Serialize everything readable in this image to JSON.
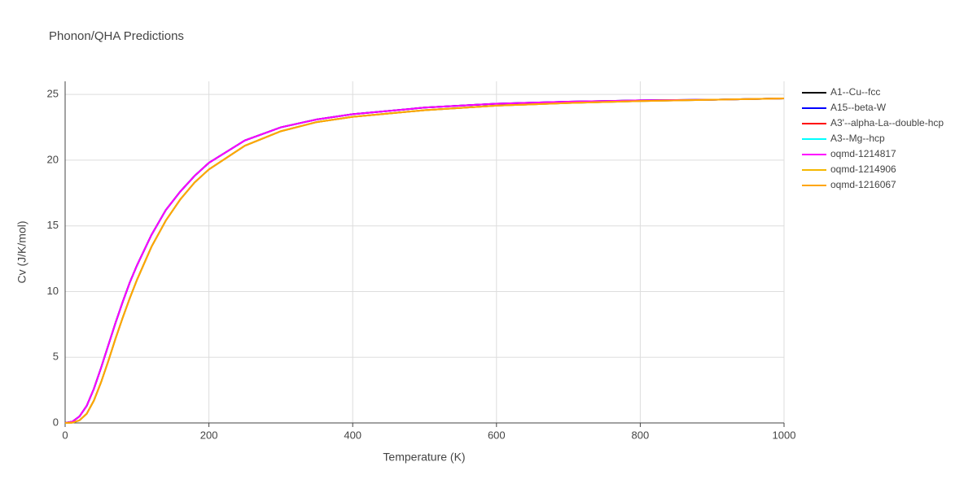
{
  "chart_data": {
    "type": "line",
    "title": "Phonon/QHA Predictions",
    "x_label": "Temperature (K)",
    "y_label": "Cv (J/K/mol)",
    "x": [
      0,
      10,
      20,
      30,
      40,
      50,
      60,
      70,
      80,
      90,
      100,
      120,
      140,
      160,
      180,
      200,
      250,
      300,
      350,
      400,
      500,
      600,
      700,
      800,
      900,
      1000
    ],
    "series": [
      {
        "name": "A1--Cu--fcc",
        "color": "#000000",
        "values": [
          0,
          0.1,
          0.5,
          1.3,
          2.6,
          4.2,
          5.9,
          7.6,
          9.2,
          10.7,
          12.0,
          14.3,
          16.2,
          17.6,
          18.8,
          19.8,
          21.5,
          22.5,
          23.1,
          23.5,
          24.0,
          24.3,
          24.45,
          24.55,
          24.6,
          24.7
        ]
      },
      {
        "name": "A15--beta-W",
        "color": "#0000ff",
        "values": [
          0,
          0.1,
          0.5,
          1.3,
          2.6,
          4.2,
          5.9,
          7.6,
          9.2,
          10.7,
          12.0,
          14.3,
          16.2,
          17.6,
          18.8,
          19.8,
          21.5,
          22.5,
          23.1,
          23.5,
          24.0,
          24.3,
          24.45,
          24.55,
          24.6,
          24.7
        ]
      },
      {
        "name": "A3'--alpha-La--double-hcp",
        "color": "#ff0000",
        "values": [
          0,
          0.02,
          0.2,
          0.7,
          1.7,
          3.1,
          4.7,
          6.4,
          8.0,
          9.5,
          10.9,
          13.4,
          15.4,
          17.0,
          18.3,
          19.3,
          21.1,
          22.2,
          22.9,
          23.3,
          23.8,
          24.15,
          24.35,
          24.5,
          24.6,
          24.7
        ]
      },
      {
        "name": "A3--Mg--hcp",
        "color": "#00ffff",
        "values": [
          0,
          0.02,
          0.2,
          0.7,
          1.7,
          3.1,
          4.7,
          6.4,
          8.0,
          9.5,
          10.9,
          13.4,
          15.4,
          17.0,
          18.3,
          19.3,
          21.1,
          22.2,
          22.9,
          23.3,
          23.8,
          24.15,
          24.35,
          24.5,
          24.6,
          24.7
        ]
      },
      {
        "name": "oqmd-1214817",
        "color": "#ff00ff",
        "values": [
          0,
          0.1,
          0.5,
          1.3,
          2.6,
          4.2,
          5.9,
          7.6,
          9.2,
          10.7,
          12.0,
          14.3,
          16.2,
          17.6,
          18.8,
          19.8,
          21.5,
          22.5,
          23.1,
          23.5,
          24.0,
          24.3,
          24.45,
          24.55,
          24.6,
          24.7
        ]
      },
      {
        "name": "oqmd-1214906",
        "color": "#f5b800",
        "values": [
          0,
          0.02,
          0.2,
          0.7,
          1.7,
          3.1,
          4.7,
          6.4,
          8.0,
          9.5,
          10.9,
          13.4,
          15.4,
          17.0,
          18.3,
          19.3,
          21.1,
          22.2,
          22.9,
          23.3,
          23.8,
          24.15,
          24.35,
          24.5,
          24.6,
          24.7
        ]
      },
      {
        "name": "oqmd-1216067",
        "color": "#ffa500",
        "values": [
          0,
          0.02,
          0.2,
          0.7,
          1.7,
          3.1,
          4.7,
          6.4,
          8.0,
          9.5,
          10.9,
          13.4,
          15.4,
          17.0,
          18.3,
          19.3,
          21.1,
          22.2,
          22.9,
          23.3,
          23.8,
          24.15,
          24.35,
          24.5,
          24.6,
          24.7
        ]
      }
    ],
    "xlim": [
      0,
      1000
    ],
    "ylim": [
      0,
      26
    ],
    "xticks": [
      0,
      200,
      400,
      600,
      800,
      1000
    ],
    "yticks": [
      0,
      5,
      10,
      15,
      20,
      25
    ],
    "grid": true,
    "legend": "right"
  }
}
